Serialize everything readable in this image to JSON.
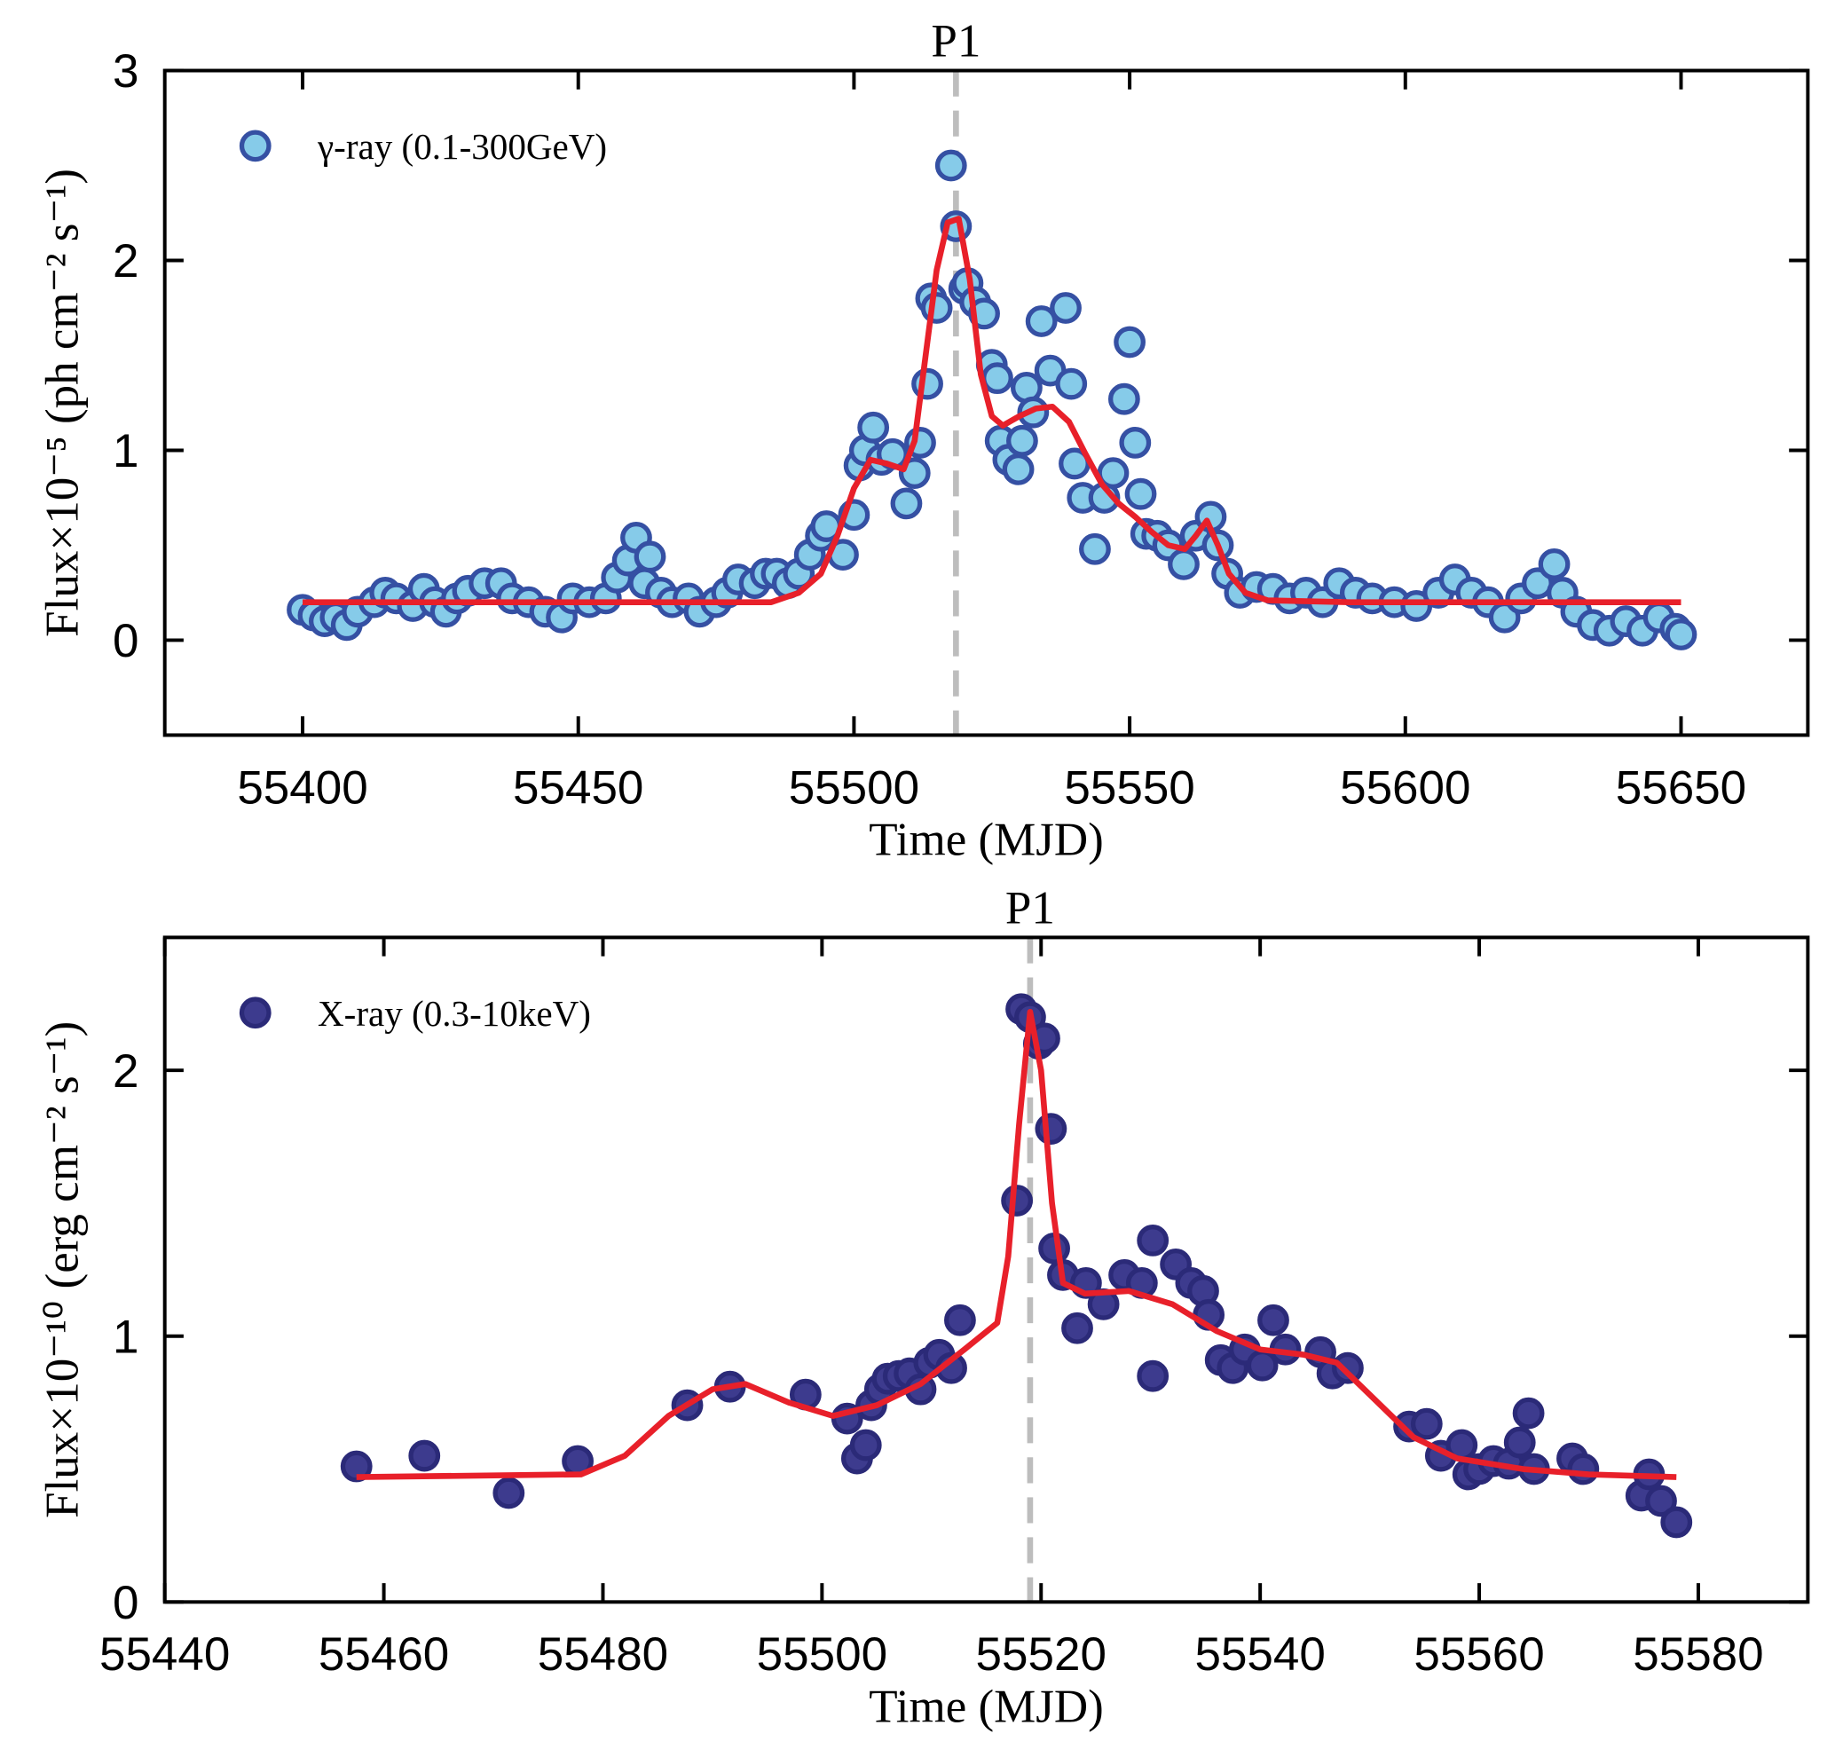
{
  "chart_data": [
    {
      "type": "scatter",
      "xlabel": "Time (MJD)",
      "ylabel": "Flux×10⁻⁵ (ph cm⁻² s⁻¹)",
      "annotation": {
        "text": "P1",
        "x": 55518.5
      },
      "legend": "upper left",
      "xlim": [
        55375,
        55673
      ],
      "ylim": [
        -0.5,
        3
      ],
      "xticks": [
        55400,
        55450,
        55500,
        55550,
        55600,
        55650
      ],
      "yticks": [
        0,
        1,
        2,
        3
      ],
      "series": [
        {
          "name": "γ-ray (0.1-300GeV)",
          "color": "#86cbe9",
          "edgecolor": "#3550a3",
          "x": [
            55400,
            55402,
            55404,
            55406,
            55408,
            55410,
            55413,
            55415,
            55417,
            55420,
            55422,
            55424,
            55426,
            55428,
            55430,
            55433,
            55436,
            55438,
            55441,
            55444,
            55447,
            55449,
            55452,
            55455,
            55457,
            55459,
            55460.5,
            55462,
            55463,
            55465,
            55467,
            55470,
            55472,
            55475,
            55477,
            55479,
            55482,
            55484,
            55486,
            55488,
            55490,
            55492,
            55494,
            55495,
            55498,
            55500,
            55501,
            55502,
            55503.5,
            55505,
            55507,
            55509.5,
            55511,
            55512,
            55513.3,
            55514,
            55515,
            55517.6,
            55518.5,
            55520,
            55520.6,
            55522,
            55523.6,
            55525,
            55526,
            55526.6,
            55528,
            55529.8,
            55530.5,
            55531.3,
            55532.5,
            55534,
            55535.6,
            55538.4,
            55539.4,
            55540,
            55541.5,
            55543.7,
            55545.4,
            55547,
            55549,
            55550,
            55551,
            55552,
            55553,
            55555,
            55557,
            55559.8,
            55562,
            55564.7,
            55566,
            55567.7,
            55570,
            55573,
            55576,
            55579,
            55582,
            55585,
            55588,
            55591,
            55594,
            55598,
            55602,
            55606,
            55609,
            55612,
            55615,
            55618,
            55621,
            55624,
            55627,
            55628.5,
            55631,
            55634,
            55637,
            55640,
            55643,
            55646,
            55649,
            55650
          ],
          "values": [
            0.16,
            0.13,
            0.1,
            0.12,
            0.08,
            0.15,
            0.2,
            0.25,
            0.22,
            0.18,
            0.27,
            0.2,
            0.15,
            0.22,
            0.26,
            0.3,
            0.3,
            0.22,
            0.2,
            0.15,
            0.12,
            0.22,
            0.2,
            0.22,
            0.33,
            0.42,
            0.54,
            0.3,
            0.44,
            0.25,
            0.2,
            0.22,
            0.15,
            0.2,
            0.25,
            0.32,
            0.3,
            0.35,
            0.35,
            0.3,
            0.35,
            0.45,
            0.55,
            0.6,
            0.45,
            0.66,
            0.92,
            1.0,
            1.12,
            0.95,
            0.98,
            0.72,
            0.88,
            1.04,
            1.35,
            1.8,
            1.75,
            2.5,
            2.18,
            1.85,
            1.88,
            1.78,
            1.72,
            1.45,
            1.38,
            1.05,
            0.95,
            0.9,
            1.05,
            1.33,
            1.2,
            1.68,
            1.42,
            1.75,
            1.35,
            0.93,
            0.75,
            0.48,
            0.75,
            0.88,
            1.27,
            1.57,
            1.04,
            0.77,
            0.56,
            0.55,
            0.5,
            0.4,
            0.55,
            0.65,
            0.5,
            0.35,
            0.25,
            0.28,
            0.27,
            0.22,
            0.25,
            0.2,
            0.3,
            0.25,
            0.22,
            0.2,
            0.18,
            0.25,
            0.32,
            0.25,
            0.2,
            0.12,
            0.22,
            0.3,
            0.4,
            0.25,
            0.15,
            0.08,
            0.05,
            0.1,
            0.05,
            0.12,
            0.06,
            0.03
          ]
        }
      ],
      "curve": {
        "color": "#e8202a",
        "x": [
          55400,
          55485,
          55490,
          55494,
          55497,
          55500,
          55503,
          55506,
          55509,
          55511,
          55513,
          55515,
          55517,
          55519,
          55521,
          55523,
          55525,
          55527,
          55530,
          55533,
          55536,
          55539,
          55542,
          55545,
          55548,
          55551,
          55554,
          55557,
          55560,
          55562,
          55564,
          55566,
          55568,
          55571,
          55575,
          55590,
          55650
        ],
        "values": [
          0.2,
          0.2,
          0.25,
          0.35,
          0.55,
          0.8,
          0.95,
          0.93,
          0.9,
          1.05,
          1.5,
          1.95,
          2.2,
          2.22,
          1.9,
          1.4,
          1.18,
          1.13,
          1.18,
          1.22,
          1.23,
          1.15,
          0.98,
          0.82,
          0.72,
          0.65,
          0.57,
          0.5,
          0.48,
          0.55,
          0.63,
          0.5,
          0.35,
          0.25,
          0.21,
          0.2,
          0.2
        ]
      }
    },
    {
      "type": "scatter",
      "xlabel": "Time (MJD)",
      "ylabel": "Flux×10⁻¹⁰ (erg cm⁻² s⁻¹)",
      "annotation": {
        "text": "P1",
        "x": 55519
      },
      "legend": "upper left",
      "xlim": [
        55440,
        55590
      ],
      "ylim": [
        0,
        2.5
      ],
      "xticks": [
        55440,
        55460,
        55480,
        55500,
        55520,
        55540,
        55560,
        55580
      ],
      "yticks": [
        0,
        1,
        2
      ],
      "series": [
        {
          "name": "X-ray (0.3-10keV)",
          "color": "#3d3b8e",
          "edgecolor": "#2b2a78",
          "x": [
            55457.5,
            55463.7,
            55471.4,
            55477.7,
            55487.7,
            55491.6,
            55498.5,
            55502.3,
            55503.2,
            55504,
            55504.5,
            55505.3,
            55506,
            55507,
            55508,
            55509,
            55509.8,
            55510.7,
            55511.8,
            55512.6,
            55517.8,
            55518.2,
            55519,
            55519.8,
            55520.3,
            55520.9,
            55521.2,
            55522,
            55523.3,
            55524.1,
            55525.7,
            55527.6,
            55529.2,
            55530.2,
            55530.2,
            55532.3,
            55533.7,
            55534.8,
            55535.3,
            55536.4,
            55537.5,
            55538.6,
            55540.2,
            55541.2,
            55542.3,
            55545.5,
            55546.6,
            55548,
            55553.6,
            55555.2,
            55556.5,
            55558.4,
            55559,
            55560,
            55561.3,
            55562.7,
            55563.7,
            55564.5,
            55565,
            55568.5,
            55569.5,
            55574.8,
            55575.5,
            55576.6,
            55578
          ],
          "values": [
            0.51,
            0.55,
            0.41,
            0.53,
            0.74,
            0.81,
            0.78,
            0.69,
            0.54,
            0.59,
            0.74,
            0.8,
            0.84,
            0.85,
            0.86,
            0.8,
            0.9,
            0.93,
            0.88,
            1.06,
            1.51,
            2.23,
            2.2,
            2.1,
            2.12,
            1.78,
            1.33,
            1.23,
            1.03,
            1.2,
            1.12,
            1.23,
            1.2,
            1.36,
            0.85,
            1.27,
            1.2,
            1.17,
            1.08,
            0.91,
            0.88,
            0.95,
            0.89,
            1.06,
            0.95,
            0.94,
            0.86,
            0.88,
            0.66,
            0.67,
            0.55,
            0.59,
            0.48,
            0.5,
            0.53,
            0.52,
            0.6,
            0.71,
            0.5,
            0.54,
            0.5,
            0.4,
            0.48,
            0.38,
            0.3
          ]
        }
      ],
      "curve": {
        "color": "#e8202a",
        "x": [
          55457.5,
          55478,
          55482,
          55486,
          55490,
          55493,
          55497,
          55501,
          55505,
          55509,
          55513,
          55516,
          55517,
          55518,
          55519,
          55520,
          55521,
          55522,
          55524,
          55528,
          55532,
          55536,
          55540,
          55544,
          55547,
          55550,
          55554,
          55558,
          55564,
          55570,
          55578
        ],
        "values": [
          0.47,
          0.48,
          0.55,
          0.7,
          0.8,
          0.82,
          0.75,
          0.7,
          0.74,
          0.82,
          0.95,
          1.05,
          1.3,
          1.8,
          2.22,
          2.0,
          1.5,
          1.2,
          1.16,
          1.17,
          1.12,
          1.02,
          0.95,
          0.93,
          0.9,
          0.78,
          0.62,
          0.54,
          0.5,
          0.48,
          0.47
        ]
      }
    }
  ]
}
